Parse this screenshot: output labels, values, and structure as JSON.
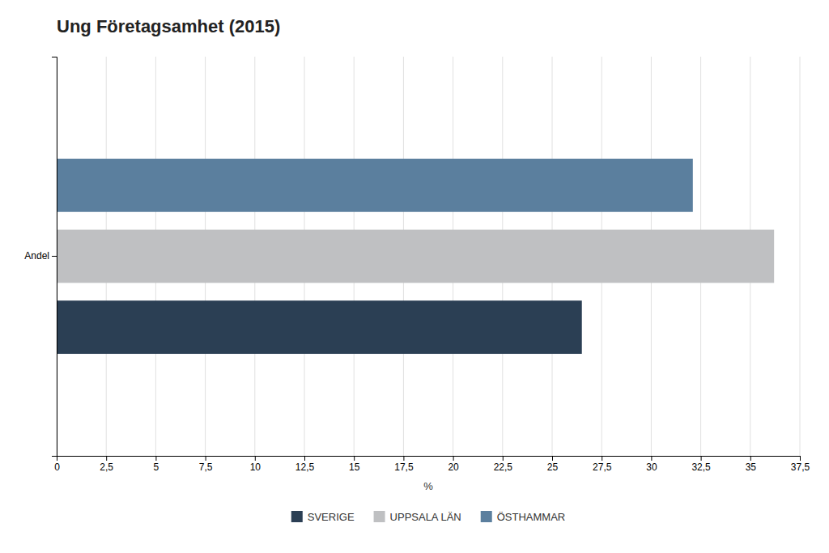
{
  "chart_data": {
    "type": "bar",
    "orientation": "horizontal",
    "title": "Ung Företagsamhet (2015)",
    "categories": [
      "Andel"
    ],
    "series": [
      {
        "name": "ÖSTHAMMAR",
        "color": "#5b7f9e",
        "values": [
          32.1
        ]
      },
      {
        "name": "UPPSALA LÄN",
        "color": "#bfc0c2",
        "values": [
          36.2
        ]
      },
      {
        "name": "SVERIGE",
        "color": "#2b3f54",
        "values": [
          26.5
        ]
      }
    ],
    "xlabel": "%",
    "xlim": [
      0,
      37.5
    ],
    "xticks": [
      0,
      {
        "value": 2.5,
        "label": "2,5"
      },
      5,
      {
        "value": 7.5,
        "label": "7,5"
      },
      10,
      {
        "value": 12.5,
        "label": "12,5"
      },
      15,
      {
        "value": 17.5,
        "label": "17,5"
      },
      20,
      {
        "value": 22.5,
        "label": "22,5"
      },
      25,
      {
        "value": 27.5,
        "label": "27,5"
      },
      30,
      {
        "value": 32.5,
        "label": "32,5"
      },
      35,
      {
        "value": 37.5,
        "label": "37,5"
      }
    ],
    "grid": true,
    "legend": "bottom"
  }
}
